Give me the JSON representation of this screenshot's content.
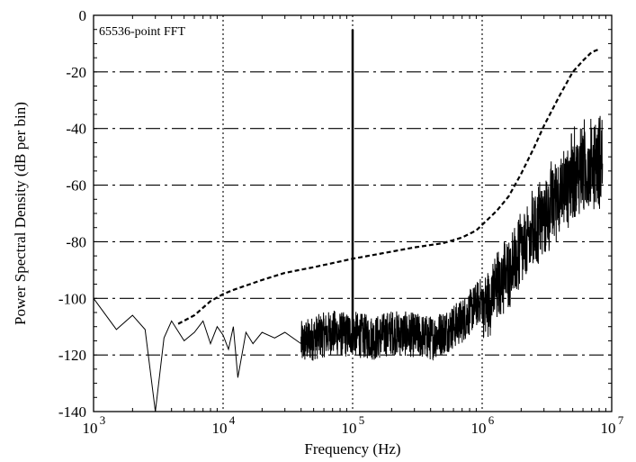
{
  "chart_data": {
    "type": "line",
    "x_scale": "log",
    "xlim": [
      1000,
      10000000
    ],
    "ylim": [
      -140,
      0
    ],
    "grid": true,
    "xlabel": "Frequency (Hz)",
    "ylabel": "Power Spectral Density (dB per bin)",
    "annotation": "65536-point FFT",
    "x_tick_labels": [
      {
        "base": "10",
        "exp": "3",
        "value": 1000
      },
      {
        "base": "10",
        "exp": "4",
        "value": 10000
      },
      {
        "base": "10",
        "exp": "5",
        "value": 100000
      },
      {
        "base": "10",
        "exp": "6",
        "value": 1000000
      },
      {
        "base": "10",
        "exp": "7",
        "value": 10000000
      }
    ],
    "y_ticks": [
      0,
      -20,
      -40,
      -60,
      -80,
      -100,
      -120,
      -140
    ],
    "y_tick_labels": [
      "0",
      "-20",
      "-40",
      "-60",
      "-80",
      "-100",
      "-120",
      "-140"
    ],
    "series": [
      {
        "style": "dashed",
        "x": [
          4500,
          6000,
          8000,
          10000,
          12000,
          15000,
          20000,
          30000,
          50000,
          100000,
          200000,
          300000,
          500000,
          700000,
          900000,
          1000000,
          1300000,
          1600000,
          2000000,
          2500000,
          3000000,
          4000000,
          5000000,
          6000000,
          7000000,
          8000000
        ],
        "y": [
          -109,
          -106,
          -101,
          -98.5,
          -97,
          -95.5,
          -93.5,
          -91,
          -89,
          -86,
          -83.5,
          -82,
          -80.5,
          -78.5,
          -76,
          -74,
          -69,
          -64,
          -56,
          -47,
          -39,
          -28,
          -20,
          -16,
          -13,
          -12
        ]
      },
      {
        "style": "solid",
        "description_free": true,
        "x": [
          1000,
          1500,
          2000,
          2500,
          3000,
          3500,
          4000,
          5000,
          6000,
          7000,
          8000,
          9000,
          10000,
          11000,
          12000,
          13000,
          15000,
          17000,
          20000,
          25000,
          30000,
          40000,
          50000,
          70000,
          90000,
          100000,
          110000,
          150000,
          200000,
          300000,
          400000,
          500000,
          600000,
          700000,
          800000,
          1000000,
          1200000,
          1500000,
          2000000,
          2500000,
          3000000,
          4000000,
          5000000,
          6000000,
          7000000,
          8000000,
          8500000
        ],
        "y": [
          -100,
          -111,
          -106,
          -111,
          -140,
          -114,
          -108,
          -115,
          -112,
          -108,
          -116,
          -110,
          -113,
          -118,
          -110,
          -128,
          -112,
          -116,
          -112,
          -114,
          -112,
          -116,
          -114,
          -112,
          -113,
          -112,
          -113,
          -114,
          -112,
          -113,
          -114,
          -112,
          -110,
          -108,
          -105,
          -100,
          -95,
          -88,
          -80,
          -73,
          -67,
          -58,
          -53,
          -50,
          -48,
          -47,
          -47
        ],
        "spike": {
          "x": 100000,
          "y_peak": -5,
          "y_base": -112
        }
      }
    ]
  }
}
